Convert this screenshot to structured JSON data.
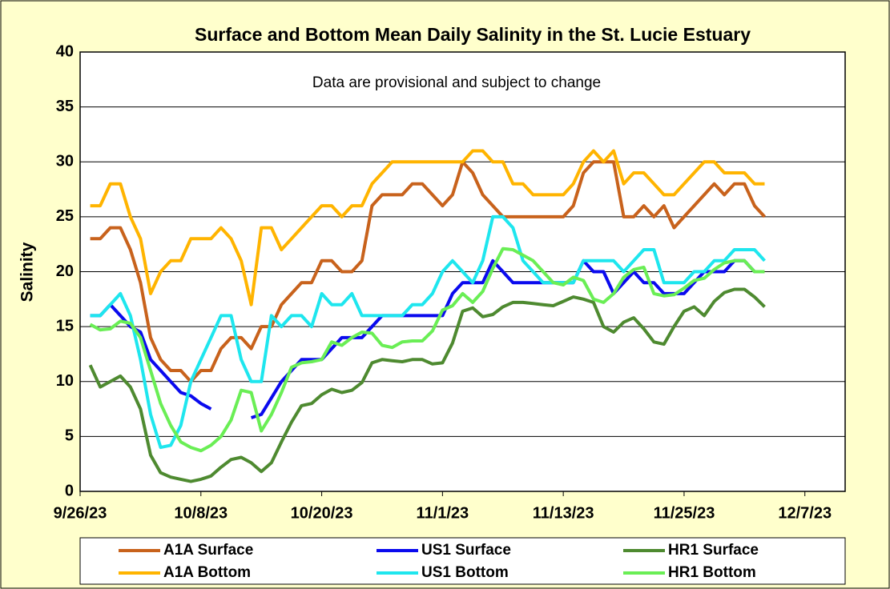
{
  "chart_data": {
    "type": "line",
    "title": "Surface and Bottom Mean Daily Salinity in the St. Lucie Estuary",
    "annotation": "Data are provisional and subject to change",
    "y_label": "Salinity",
    "x": [
      "2023-09-27",
      "2023-09-28",
      "2023-09-29",
      "2023-09-30",
      "2023-10-01",
      "2023-10-02",
      "2023-10-03",
      "2023-10-04",
      "2023-10-05",
      "2023-10-06",
      "2023-10-07",
      "2023-10-08",
      "2023-10-09",
      "2023-10-10",
      "2023-10-11",
      "2023-10-12",
      "2023-10-13",
      "2023-10-14",
      "2023-10-15",
      "2023-10-16",
      "2023-10-17",
      "2023-10-18",
      "2023-10-19",
      "2023-10-20",
      "2023-10-21",
      "2023-10-22",
      "2023-10-23",
      "2023-10-24",
      "2023-10-25",
      "2023-10-26",
      "2023-10-27",
      "2023-10-28",
      "2023-10-29",
      "2023-10-30",
      "2023-10-31",
      "2023-11-01",
      "2023-11-02",
      "2023-11-03",
      "2023-11-04",
      "2023-11-05",
      "2023-11-06",
      "2023-11-07",
      "2023-11-08",
      "2023-11-09",
      "2023-11-10",
      "2023-11-11",
      "2023-11-12",
      "2023-11-13",
      "2023-11-14",
      "2023-11-15",
      "2023-11-16",
      "2023-11-17",
      "2023-11-18",
      "2023-11-19",
      "2023-11-20",
      "2023-11-21",
      "2023-11-22",
      "2023-11-23",
      "2023-11-24",
      "2023-11-25",
      "2023-11-26",
      "2023-11-27",
      "2023-11-28",
      "2023-11-29",
      "2023-11-30",
      "2023-12-01",
      "2023-12-02",
      "2023-12-03"
    ],
    "series": [
      {
        "name": "A1A Surface",
        "color": "#c8621c",
        "values": [
          23,
          23,
          24,
          24,
          22,
          19,
          14,
          12,
          11,
          11,
          10,
          11,
          11,
          13,
          14,
          14,
          13,
          15,
          15,
          17,
          18,
          19,
          19,
          21,
          21,
          20,
          20,
          21,
          26,
          27,
          27,
          27,
          28,
          28,
          27,
          26,
          27,
          30,
          29,
          27,
          26,
          25,
          25,
          25,
          25,
          25,
          25,
          25,
          26,
          29,
          30,
          30,
          30,
          25,
          25,
          26,
          25,
          26,
          24,
          25,
          26,
          27,
          28,
          27,
          28,
          28,
          26,
          25
        ]
      },
      {
        "name": "US1 Surface",
        "color": "#0a0aee",
        "values": [
          16,
          16,
          17,
          16,
          15,
          14.5,
          12,
          11,
          10,
          9,
          8.7,
          8,
          7.5,
          null,
          null,
          null,
          6.7,
          7,
          8.5,
          10,
          11,
          12,
          12,
          12,
          13,
          14,
          14,
          14,
          15,
          16,
          16,
          16,
          16,
          16,
          16,
          16,
          18,
          19,
          19,
          19,
          21,
          20,
          19,
          19,
          19,
          19,
          19,
          19,
          19,
          21,
          20,
          20,
          18,
          19,
          20,
          19,
          19,
          18,
          18,
          18,
          19,
          20,
          20,
          20,
          21,
          21,
          20,
          20
        ]
      },
      {
        "name": "HR1 Surface",
        "color": "#4e8a30",
        "values": [
          11.5,
          9.5,
          10,
          10.5,
          9.5,
          7.5,
          3.3,
          1.7,
          1.3,
          1.1,
          0.9,
          1.1,
          1.4,
          2.2,
          2.9,
          3.1,
          2.6,
          1.8,
          2.6,
          4.5,
          6.3,
          7.8,
          8,
          8.8,
          9.3,
          9,
          9.2,
          9.9,
          11.7,
          12,
          11.9,
          11.8,
          12,
          12,
          11.6,
          11.7,
          13.5,
          16.4,
          16.7,
          15.9,
          16.1,
          16.8,
          17.2,
          17.2,
          17.1,
          17,
          16.9,
          17.3,
          17.7,
          17.5,
          17.2,
          15,
          14.5,
          15.4,
          15.8,
          14.8,
          13.6,
          13.4,
          15,
          16.4,
          16.8,
          16,
          17.3,
          18.1,
          18.4,
          18.4,
          17.7,
          16.8
        ]
      },
      {
        "name": "A1A Bottom",
        "color": "#ffb400",
        "values": [
          26,
          26,
          28,
          28,
          25,
          23,
          18,
          20,
          21,
          21,
          23,
          23,
          23,
          24,
          23,
          21,
          17,
          24,
          24,
          22,
          23,
          24,
          25,
          26,
          26,
          25,
          26,
          26,
          28,
          29,
          30,
          30,
          30,
          30,
          30,
          30,
          30,
          30,
          31,
          31,
          30,
          30,
          28,
          28,
          27,
          27,
          27,
          27,
          28,
          30,
          31,
          30,
          31,
          28,
          29,
          29,
          28,
          27,
          27,
          28,
          29,
          30,
          30,
          29,
          29,
          29,
          28,
          28
        ]
      },
      {
        "name": "US1 Bottom",
        "color": "#1ee6ee",
        "values": [
          16,
          16,
          17,
          18,
          16,
          12,
          7,
          4,
          4.2,
          6,
          10,
          12,
          14,
          16,
          16,
          12,
          10,
          10,
          16,
          15,
          16,
          16,
          15,
          18,
          17,
          17,
          18,
          16,
          16,
          16,
          16,
          16,
          17,
          17,
          18,
          20,
          21,
          20,
          19,
          21,
          25,
          25,
          24,
          21,
          20,
          19,
          19,
          19,
          19,
          21,
          21,
          21,
          21,
          20,
          21,
          22,
          22,
          19,
          19,
          19,
          20,
          20,
          21,
          21,
          22,
          22,
          22,
          21
        ]
      },
      {
        "name": "HR1 Bottom",
        "color": "#6aee55",
        "values": [
          15.2,
          14.7,
          14.8,
          15.5,
          15.3,
          14,
          11,
          8,
          6,
          4.5,
          4,
          3.7,
          4.2,
          5,
          6.5,
          9.2,
          9,
          5.5,
          7,
          9,
          11.3,
          11.7,
          11.8,
          12,
          13.6,
          13.3,
          14,
          14.5,
          14.4,
          13.3,
          13.1,
          13.6,
          13.7,
          13.7,
          14.6,
          16.5,
          16.9,
          18,
          17.2,
          18.2,
          20.3,
          22.1,
          22,
          21.5,
          21,
          20,
          19,
          18.8,
          19.5,
          19.2,
          17.5,
          17.2,
          18,
          19.5,
          20.2,
          20.4,
          18,
          17.8,
          17.9,
          18.5,
          19.2,
          19.4,
          20.2,
          20.8,
          21,
          21,
          20,
          20
        ]
      }
    ],
    "xlim": [
      "2023-09-26",
      "2023-12-11"
    ],
    "xticks": [
      {
        "value": "2023-09-26",
        "label": "9/26/23"
      },
      {
        "value": "2023-10-08",
        "label": "10/8/23"
      },
      {
        "value": "2023-10-20",
        "label": "10/20/23"
      },
      {
        "value": "2023-11-01",
        "label": "11/1/23"
      },
      {
        "value": "2023-11-13",
        "label": "11/13/23"
      },
      {
        "value": "2023-11-25",
        "label": "11/25/23"
      },
      {
        "value": "2023-12-07",
        "label": "12/7/23"
      }
    ],
    "ylim": [
      0,
      40
    ],
    "yticks": [
      0,
      5,
      10,
      15,
      20,
      25,
      30,
      35,
      40
    ],
    "grid": true,
    "legend": "bottom"
  }
}
